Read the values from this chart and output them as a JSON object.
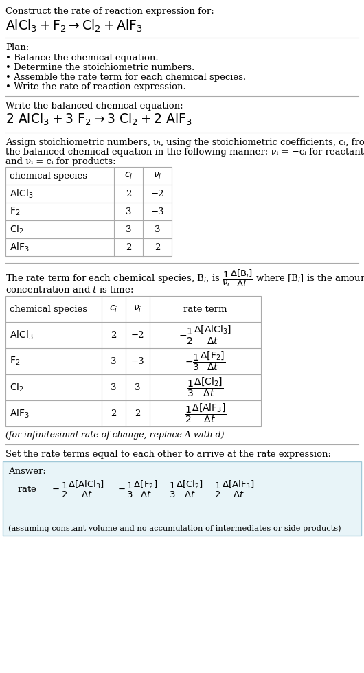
{
  "title_line1": "Construct the rate of reaction expression for:",
  "plan_header": "Plan:",
  "plan_items": [
    "• Balance the chemical equation.",
    "• Determine the stoichiometric numbers.",
    "• Assemble the rate term for each chemical species.",
    "• Write the rate of reaction expression."
  ],
  "balanced_header": "Write the balanced chemical equation:",
  "assign_text1": "Assign stoichiometric numbers, νᵢ, using the stoichiometric coefficients, cᵢ, from",
  "assign_text2": "the balanced chemical equation in the following manner: νᵢ = −cᵢ for reactants",
  "assign_text3": "and νᵢ = cᵢ for products:",
  "table1_rows": [
    [
      "AlCl₃",
      "2",
      "−2"
    ],
    [
      "F₂",
      "3",
      "−3"
    ],
    [
      "Cl₂",
      "3",
      "3"
    ],
    [
      "AlF₃",
      "2",
      "2"
    ]
  ],
  "rate_text_conc": "concentration and t is time:",
  "table2_rows": [
    [
      "AlCl₃",
      "2",
      "−2"
    ],
    [
      "F₂",
      "3",
      "−3"
    ],
    [
      "Cl₂",
      "3",
      "3"
    ],
    [
      "AlF₃",
      "2",
      "2"
    ]
  ],
  "infinitesimal_note": "(for infinitesimal rate of change, replace Δ with d)",
  "set_rate_text": "Set the rate terms equal to each other to arrive at the rate expression:",
  "answer_label": "Answer:",
  "answer_box_color": "#e8f4f8",
  "answer_box_border": "#a0c8d8",
  "assuming_note": "(assuming constant volume and no accumulation of intermediates or side products)",
  "bg_color": "#ffffff",
  "text_color": "#000000",
  "table_border_color": "#aaaaaa",
  "font_size": 9.5,
  "font_family": "DejaVu Serif"
}
